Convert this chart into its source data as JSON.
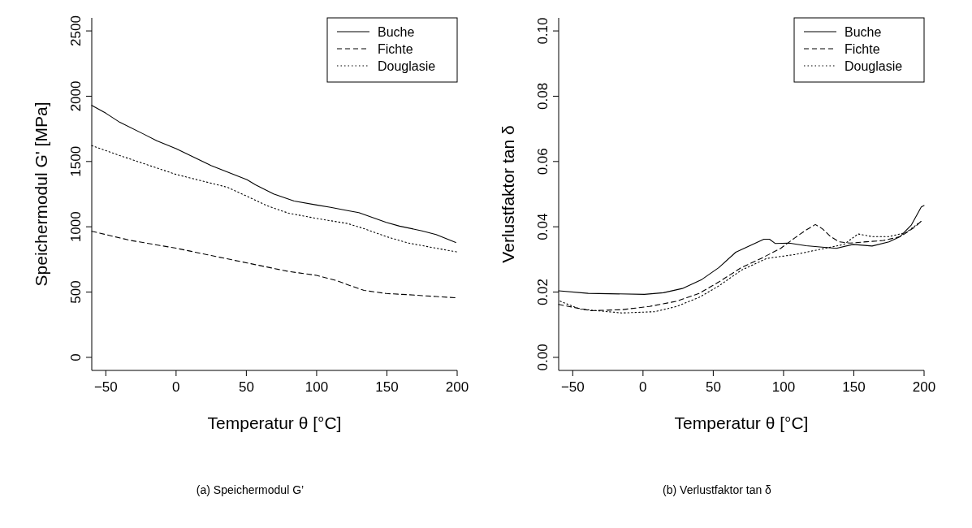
{
  "chart_data": [
    {
      "type": "line",
      "xlabel": "Temperatur θ [°C]",
      "ylabel": "Speichermodul G' [MPa]",
      "xlim": [
        -60,
        200
      ],
      "ylim": [
        -100,
        2600
      ],
      "xticks": [
        -50,
        0,
        50,
        100,
        150,
        200
      ],
      "yticks": [
        0,
        500,
        1000,
        1500,
        2000,
        2500
      ],
      "legend": "top right",
      "grid": false,
      "annotations": [
        "(a)  Speichermodul G’"
      ],
      "series": [
        {
          "name": "Buche",
          "color": "#000000",
          "line_style": "solid",
          "x": [
            -60,
            -50,
            -40,
            -22.7,
            -13.8,
            0,
            24.8,
            50.5,
            56.5,
            69.4,
            84,
            100,
            110,
            122,
            130,
            149.5,
            159,
            175,
            185,
            199
          ],
          "values": [
            1930,
            1870,
            1800,
            1708,
            1659,
            1599,
            1470,
            1361,
            1322,
            1252,
            1197,
            1167,
            1149,
            1124,
            1108,
            1034,
            1005,
            969,
            941,
            880
          ]
        },
        {
          "name": "Fichte",
          "color": "#000000",
          "line_style": "dashed",
          "x": [
            -60,
            -57.3,
            -32.6,
            0,
            30.8,
            50.6,
            80,
            100,
            114,
            124,
            133.7,
            149.5,
            165,
            185,
            200
          ],
          "values": [
            965,
            959,
            896,
            836,
            767,
            723,
            658,
            628,
            589,
            549,
            513,
            489,
            480,
            466,
            456
          ]
        },
        {
          "name": "Douglasie",
          "color": "#000000",
          "line_style": "dotted",
          "x": [
            -60,
            -59.3,
            -38.5,
            0,
            36.7,
            50.6,
            64.4,
            80,
            100,
            122,
            134,
            149.5,
            165,
            185,
            200
          ],
          "values": [
            1622,
            1619,
            1540,
            1401,
            1302,
            1233,
            1163,
            1104,
            1064,
            1025,
            985,
            925,
            876,
            836,
            807
          ]
        }
      ]
    },
    {
      "type": "line",
      "xlabel": "Temperatur θ [°C]",
      "ylabel": "Verlustfaktor tan δ",
      "xlim": [
        -60,
        200
      ],
      "ylim": [
        -0.004,
        0.104
      ],
      "xticks": [
        -50,
        0,
        50,
        100,
        150,
        200
      ],
      "yticks": [
        {
          "value": 0,
          "label": "0.00"
        },
        {
          "value": 0.02,
          "label": "0.02"
        },
        {
          "value": 0.04,
          "label": "0.04"
        },
        {
          "value": 0.06,
          "label": "0.06"
        },
        {
          "value": 0.08,
          "label": "0.08"
        },
        {
          "value": 0.1,
          "label": "0.10"
        }
      ],
      "legend": "top right",
      "grid": false,
      "annotations": [
        "(b)  Verlustfaktor tan δ"
      ],
      "series": [
        {
          "name": "Buche",
          "color": "#000000",
          "line_style": "solid",
          "x": [
            -60,
            -39,
            1,
            14.5,
            28,
            42,
            54,
            66,
            76,
            86,
            90,
            94,
            104,
            116,
            137.5,
            149.4,
            163,
            175,
            183,
            191,
            198,
            200
          ],
          "values": [
            0.0204,
            0.0196,
            0.0193,
            0.0198,
            0.0211,
            0.0239,
            0.0275,
            0.0322,
            0.0342,
            0.0362,
            0.0362,
            0.0349,
            0.035,
            0.0342,
            0.0334,
            0.0346,
            0.0341,
            0.0354,
            0.037,
            0.0406,
            0.0461,
            0.0465
          ]
        },
        {
          "name": "Fichte",
          "color": "#000000",
          "line_style": "dashed",
          "x": [
            -60,
            -37,
            -15,
            4.6,
            24,
            40,
            54,
            70,
            84,
            98,
            108,
            116,
            122.6,
            127.6,
            133.5,
            139.5,
            147.4,
            159,
            171,
            183,
            193,
            199
          ],
          "values": [
            0.0162,
            0.0143,
            0.0146,
            0.0156,
            0.0172,
            0.0196,
            0.0231,
            0.0275,
            0.0303,
            0.0334,
            0.0366,
            0.039,
            0.0407,
            0.0394,
            0.037,
            0.0354,
            0.035,
            0.0354,
            0.0358,
            0.037,
            0.0398,
            0.0421
          ]
        },
        {
          "name": "Douglasie",
          "color": "#000000",
          "line_style": "dotted",
          "x": [
            -59,
            -45,
            -15,
            8.5,
            24,
            40,
            54,
            70,
            88,
            108,
            129.6,
            143,
            153,
            163,
            175,
            187,
            198
          ],
          "values": [
            0.0172,
            0.0148,
            0.0136,
            0.014,
            0.0156,
            0.0184,
            0.0219,
            0.0267,
            0.0303,
            0.0315,
            0.0334,
            0.0346,
            0.0378,
            0.037,
            0.037,
            0.0382,
            0.0417
          ]
        }
      ]
    }
  ]
}
